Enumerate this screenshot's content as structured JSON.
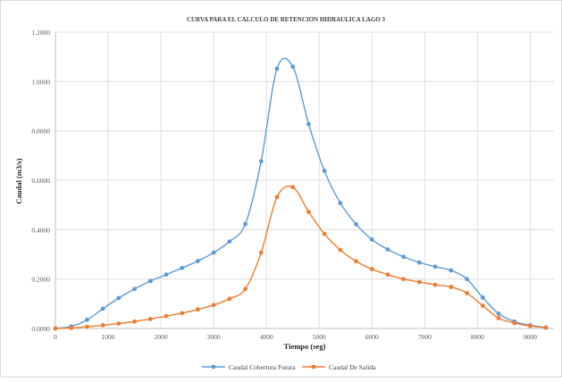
{
  "chart_data": {
    "type": "line",
    "title": "CURVA PARA EL CALCULO DE RETENCION HIDRAULICA LAGO 3",
    "xlabel": "Tiempo (seg)",
    "ylabel": "Caudal (m3/s)",
    "xlim": [
      0,
      9450
    ],
    "ylim": [
      0,
      1.2
    ],
    "x_ticks": [
      0,
      1000,
      2000,
      3000,
      4000,
      5000,
      6000,
      7000,
      8000,
      9000
    ],
    "x_tick_labels": [
      "0",
      "1000",
      "2000",
      "3000",
      "4000",
      "5000",
      "6000",
      "7000",
      "8000",
      "9000"
    ],
    "y_ticks": [
      0,
      0.2,
      0.4,
      0.6,
      0.8,
      1.0,
      1.2
    ],
    "y_tick_labels": [
      "0.0000",
      "0.2000",
      "0.4000",
      "0.6000",
      "0.8000",
      "1.0000",
      "1.2000"
    ],
    "grid": true,
    "legend_position": "bottom",
    "series": [
      {
        "name": "Caudal Cobertura Futura",
        "color": "#5b9bd5",
        "x": [
          0,
          300,
          600,
          900,
          1200,
          1500,
          1800,
          2100,
          2400,
          2700,
          3000,
          3300,
          3600,
          3900,
          4200,
          4500,
          4800,
          5100,
          5400,
          5700,
          6000,
          6300,
          6600,
          6900,
          7200,
          7500,
          7800,
          8100,
          8400,
          8700,
          9000,
          9300
        ],
        "values": [
          0.0,
          0.008,
          0.035,
          0.08,
          0.123,
          0.16,
          0.192,
          0.218,
          0.245,
          0.273,
          0.307,
          0.352,
          0.423,
          0.677,
          1.052,
          1.06,
          0.828,
          0.638,
          0.508,
          0.422,
          0.36,
          0.32,
          0.29,
          0.267,
          0.25,
          0.235,
          0.2,
          0.125,
          0.06,
          0.028,
          0.013,
          0.004
        ]
      },
      {
        "name": "Caudal De Salida",
        "color": "#ed7d31",
        "x": [
          0,
          300,
          600,
          900,
          1200,
          1500,
          1800,
          2100,
          2400,
          2700,
          3000,
          3300,
          3600,
          3900,
          4200,
          4500,
          4800,
          5100,
          5400,
          5700,
          6000,
          6300,
          6600,
          6900,
          7200,
          7500,
          7800,
          8100,
          8400,
          8700,
          9000,
          9300
        ],
        "values": [
          0.0,
          0.002,
          0.007,
          0.013,
          0.02,
          0.028,
          0.038,
          0.05,
          0.062,
          0.077,
          0.095,
          0.12,
          0.16,
          0.307,
          0.532,
          0.572,
          0.472,
          0.383,
          0.318,
          0.272,
          0.24,
          0.218,
          0.2,
          0.188,
          0.177,
          0.168,
          0.143,
          0.092,
          0.042,
          0.022,
          0.01,
          0.003
        ]
      }
    ]
  }
}
